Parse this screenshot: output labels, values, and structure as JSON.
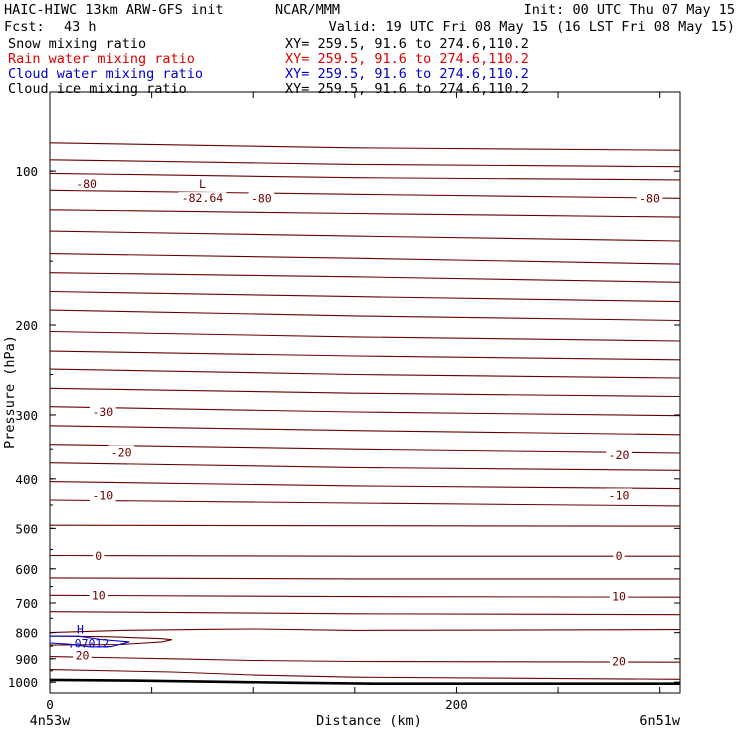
{
  "header": {
    "left_line1": "HAIC-HIWC 13km ARW-GFS init",
    "center_line1": "NCAR/MMM",
    "right_line1": "Init: 00 UTC Thu 07 May 15",
    "left_line2_label": "Fcst:",
    "left_line2_value": "43 h",
    "right_line2": "Valid: 19 UTC Fri 08 May 15 (16 LST Fri 08 May 15)"
  },
  "fields": [
    {
      "name": "Snow mixing ratio",
      "xy": "XY= 259.5, 91.6 to 274.6,110.2",
      "color": "#000000"
    },
    {
      "name": "Rain water mixing ratio",
      "xy": "XY= 259.5, 91.6 to 274.6,110.2",
      "color": "#e00000"
    },
    {
      "name": "Cloud water mixing ratio",
      "xy": "XY= 259.5, 91.6 to 274.6,110.2",
      "color": "#0000cc"
    },
    {
      "name": "Cloud ice mixing ratio",
      "xy": "XY= 259.5, 91.6 to 274.6,110.2",
      "color": "#000000"
    }
  ],
  "colors": {
    "temperature_contours": "#6b0000",
    "cloud_water_contour": "#0000cc",
    "surface": "#000000"
  },
  "chart_data": {
    "type": "contour",
    "xlabel": "Distance (km)",
    "ylabel": "Pressure (hPa)",
    "x_range": [
      0,
      310
    ],
    "y_range": [
      1050,
      70
    ],
    "y_log": true,
    "x_ticks": [
      {
        "value": 0,
        "label": "0"
      },
      {
        "value": 200,
        "label": "200"
      }
    ],
    "x_minor_ticks": [
      0,
      50,
      100,
      150,
      200,
      250,
      300
    ],
    "y_ticks": [
      {
        "value": 100,
        "label": "100"
      },
      {
        "value": 200,
        "label": "200"
      },
      {
        "value": 300,
        "label": "300"
      },
      {
        "value": 400,
        "label": "400"
      },
      {
        "value": 500,
        "label": "500"
      },
      {
        "value": 600,
        "label": "600"
      },
      {
        "value": 700,
        "label": "700"
      },
      {
        "value": 800,
        "label": "800"
      },
      {
        "value": 900,
        "label": "900"
      },
      {
        "value": 1000,
        "label": "1000"
      }
    ],
    "endpoints": {
      "left": "4n53w",
      "right": "6n51w"
    },
    "temperature_isotherms": [
      {
        "pts": [
          [
            0,
            88
          ],
          [
            150,
            90
          ],
          [
            310,
            91
          ]
        ]
      },
      {
        "pts": [
          [
            0,
            95
          ],
          [
            150,
            97
          ],
          [
            310,
            98
          ]
        ]
      },
      {
        "pts": [
          [
            0,
            101
          ],
          [
            150,
            103
          ],
          [
            310,
            104
          ]
        ]
      },
      {
        "pts": [
          [
            0,
            109
          ],
          [
            150,
            111
          ],
          [
            310,
            113
          ]
        ]
      },
      {
        "pts": [
          [
            0,
            119
          ],
          [
            150,
            121
          ],
          [
            310,
            123
          ]
        ]
      },
      {
        "pts": [
          [
            0,
            131
          ],
          [
            150,
            134
          ],
          [
            310,
            137
          ]
        ]
      },
      {
        "pts": [
          [
            0,
            145
          ],
          [
            150,
            148
          ],
          [
            310,
            152
          ]
        ]
      },
      {
        "pts": [
          [
            0,
            158
          ],
          [
            150,
            161
          ],
          [
            310,
            165
          ]
        ]
      },
      {
        "pts": [
          [
            0,
            172
          ],
          [
            150,
            176
          ],
          [
            310,
            180
          ]
        ]
      },
      {
        "pts": [
          [
            0,
            187
          ],
          [
            150,
            192
          ],
          [
            310,
            196
          ]
        ]
      },
      {
        "pts": [
          [
            0,
            206
          ],
          [
            150,
            211
          ],
          [
            310,
            215
          ]
        ]
      },
      {
        "pts": [
          [
            0,
            225
          ],
          [
            150,
            230
          ],
          [
            310,
            234
          ]
        ]
      },
      {
        "pts": [
          [
            0,
            244
          ],
          [
            150,
            250
          ],
          [
            310,
            254
          ]
        ]
      },
      {
        "pts": [
          [
            0,
            266
          ],
          [
            150,
            272
          ],
          [
            310,
            276
          ]
        ]
      },
      {
        "pts": [
          [
            0,
            289
          ],
          [
            150,
            296
          ],
          [
            310,
            301
          ]
        ]
      },
      {
        "pts": [
          [
            0,
            315
          ],
          [
            150,
            322
          ],
          [
            310,
            328
          ]
        ]
      },
      {
        "pts": [
          [
            0,
            343
          ],
          [
            150,
            350
          ],
          [
            310,
            356
          ]
        ]
      },
      {
        "pts": [
          [
            0,
            372
          ],
          [
            150,
            380
          ],
          [
            310,
            385
          ]
        ]
      },
      {
        "pts": [
          [
            0,
            405
          ],
          [
            150,
            413
          ],
          [
            310,
            418
          ]
        ]
      },
      {
        "pts": [
          [
            0,
            440
          ],
          [
            150,
            446
          ],
          [
            310,
            452
          ]
        ]
      },
      {
        "pts": [
          [
            0,
            493
          ],
          [
            150,
            494
          ],
          [
            310,
            495
          ]
        ]
      },
      {
        "pts": [
          [
            0,
            565
          ],
          [
            150,
            567
          ],
          [
            310,
            567
          ]
        ]
      },
      {
        "pts": [
          [
            0,
            625
          ],
          [
            150,
            628
          ],
          [
            310,
            628
          ]
        ]
      },
      {
        "pts": [
          [
            0,
            676
          ],
          [
            150,
            680
          ],
          [
            310,
            682
          ]
        ]
      },
      {
        "pts": [
          [
            0,
            728
          ],
          [
            150,
            735
          ],
          [
            310,
            738
          ]
        ]
      },
      {
        "pts": [
          [
            0,
            800
          ],
          [
            35,
            792
          ],
          [
            80,
            788
          ],
          [
            100,
            787
          ],
          [
            150,
            792
          ],
          [
            310,
            789
          ]
        ]
      },
      {
        "pts": [
          [
            0,
            891
          ],
          [
            60,
            900
          ],
          [
            100,
            907
          ],
          [
            150,
            911
          ],
          [
            310,
            914
          ]
        ]
      },
      {
        "pts": [
          [
            0,
            945
          ],
          [
            60,
            955
          ],
          [
            100,
            968
          ],
          [
            150,
            978
          ],
          [
            310,
            987
          ]
        ]
      }
    ],
    "warm_bubble": {
      "pts": [
        [
          0,
          812
        ],
        [
          30,
          815
        ],
        [
          55,
          822
        ],
        [
          60,
          826
        ],
        [
          55,
          834
        ],
        [
          35,
          844
        ],
        [
          0,
          846
        ]
      ]
    },
    "temperature_labels": [
      {
        "text": "-80",
        "x": 18,
        "p": 106
      },
      {
        "text": "-80",
        "x": 104,
        "p": 113
      },
      {
        "text": "-80",
        "x": 295,
        "p": 113
      },
      {
        "text": "-30",
        "x": 26,
        "p": 296
      },
      {
        "text": "-20",
        "x": 35,
        "p": 355
      },
      {
        "text": "-20",
        "x": 280,
        "p": 359
      },
      {
        "text": "-10",
        "x": 26,
        "p": 431
      },
      {
        "text": "-10",
        "x": 280,
        "p": 431
      },
      {
        "text": "0",
        "x": 24,
        "p": 566
      },
      {
        "text": "0",
        "x": 280,
        "p": 566
      },
      {
        "text": "10",
        "x": 24,
        "p": 677
      },
      {
        "text": "10",
        "x": 280,
        "p": 679
      },
      {
        "text": "20",
        "x": 16,
        "p": 887
      },
      {
        "text": "20",
        "x": 280,
        "p": 912
      }
    ],
    "minimum": {
      "letter": "L",
      "value": "-82.64",
      "x": 75,
      "p": 106
    },
    "cloud_water": {
      "pts": [
        [
          0,
          813
        ],
        [
          14,
          813
        ],
        [
          25,
          825
        ],
        [
          39,
          834
        ],
        [
          30,
          852
        ],
        [
          20,
          853
        ],
        [
          10,
          843
        ],
        [
          0,
          838
        ]
      ],
      "max_letter": "H",
      "max_value": ".07012",
      "x": 16,
      "p": 829
    },
    "terrain_surface": {
      "pts": [
        [
          0,
          990
        ],
        [
          40,
          993
        ],
        [
          80,
          998
        ],
        [
          120,
          1003
        ],
        [
          160,
          1007
        ],
        [
          220,
          1007
        ],
        [
          310,
          1007
        ]
      ]
    }
  }
}
